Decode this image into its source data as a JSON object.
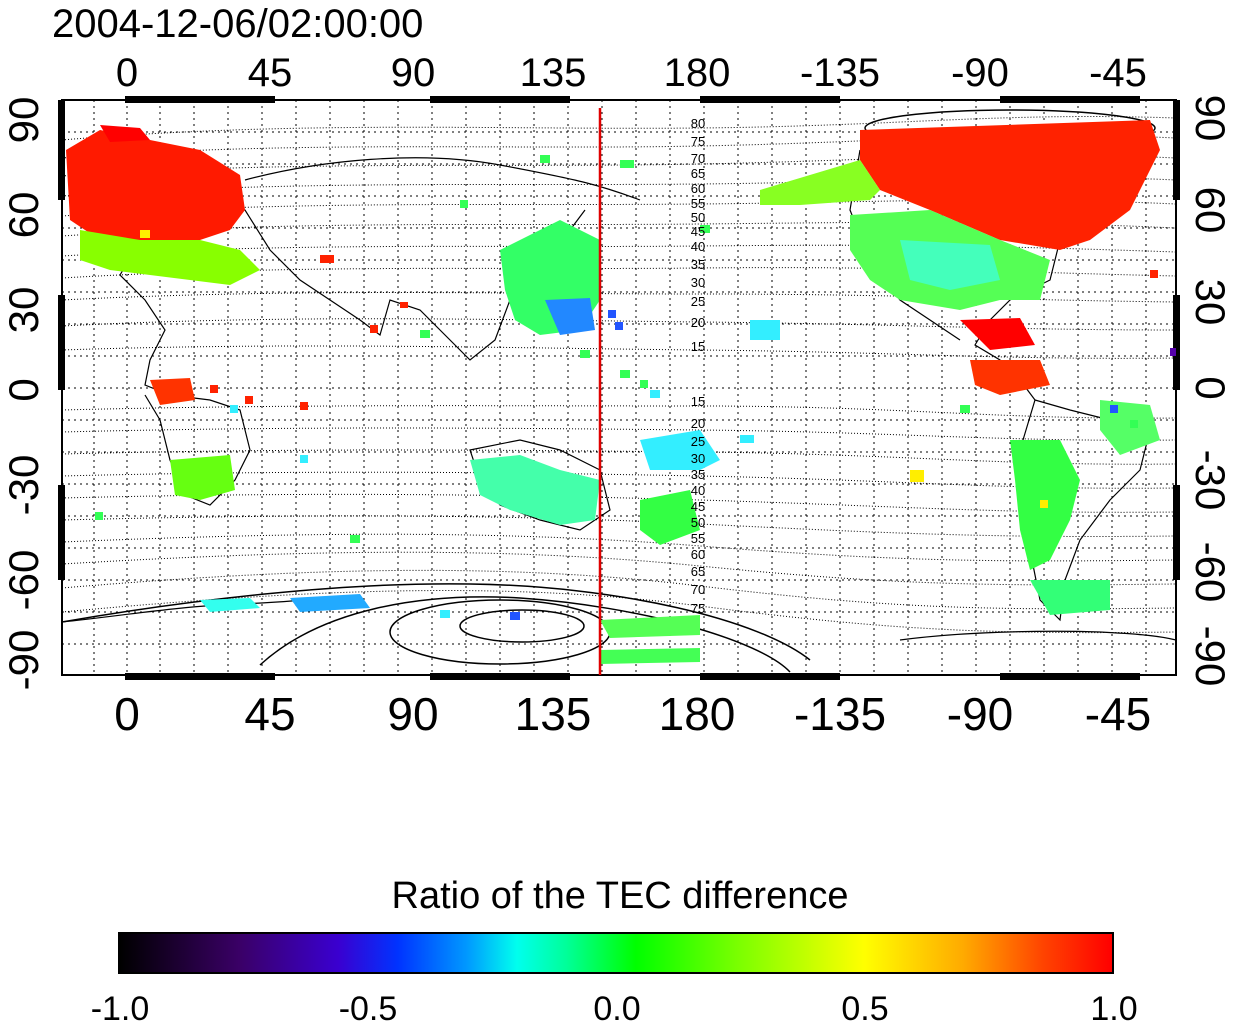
{
  "title": "2004-12-06/02:00:00",
  "map": {
    "top_lon_labels": [
      "0",
      "45",
      "90",
      "135",
      "180",
      "-135",
      "-90",
      "-45"
    ],
    "bottom_lon_labels": [
      "0",
      "45",
      "90",
      "135",
      "180",
      "-135",
      "-90",
      "-45"
    ],
    "left_lat_labels": [
      "90",
      "60",
      "30",
      "0",
      "-30",
      "-60",
      "-90"
    ],
    "right_lat_labels": [
      "90",
      "60",
      "30",
      "0",
      "-30",
      "-60",
      "-90"
    ],
    "contour_labels_north": [
      "80",
      "75",
      "70",
      "65",
      "60",
      "55",
      "50",
      "45",
      "40",
      "35",
      "30",
      "25",
      "20",
      "15"
    ],
    "contour_labels_south": [
      "15",
      "20",
      "25",
      "30",
      "35",
      "40",
      "45",
      "50",
      "55",
      "60",
      "65",
      "70",
      "75"
    ],
    "marker_line_lon": 150,
    "marker_line_color": "#e00000"
  },
  "colorbar": {
    "title": "Ratio of the TEC difference",
    "tick_labels": [
      "-1.0",
      "-0.5",
      "0.0",
      "0.5",
      "1.0"
    ],
    "range": [
      -1.0,
      1.0
    ]
  }
}
